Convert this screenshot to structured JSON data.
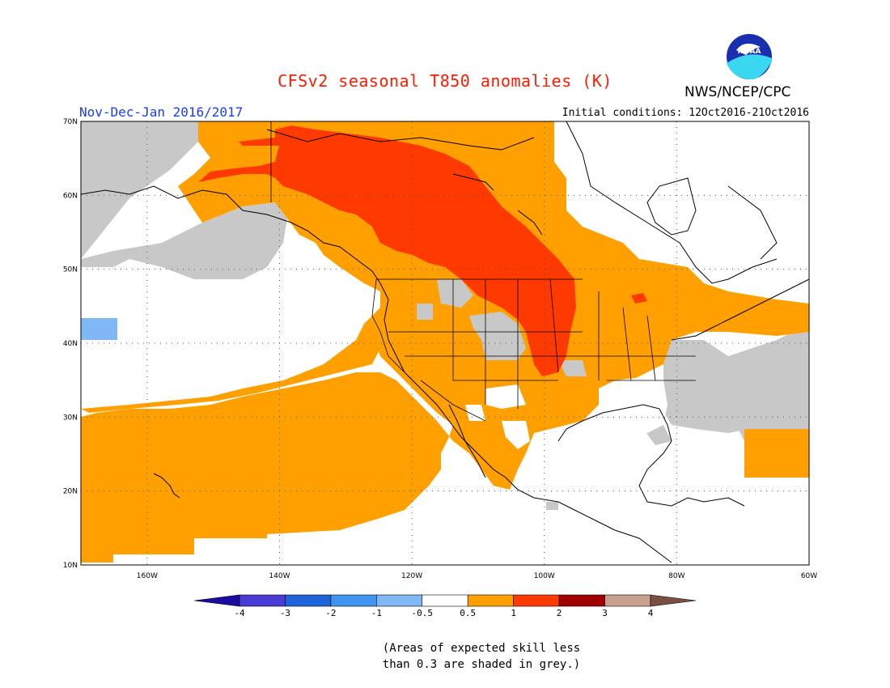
{
  "title": "CFSv2 seasonal T850 anomalies (K)",
  "organization": "NWS/NCEP/CPC",
  "logo_text": "NOAA",
  "period": "Nov-Dec-Jan 2016/2017",
  "initial_conditions": "Initial conditions: 12Oct2016-21Oct2016",
  "lat_labels": [
    "70N",
    "60N",
    "50N",
    "40N",
    "30N",
    "20N",
    "10N"
  ],
  "lon_labels": [
    "160W",
    "140W",
    "120W",
    "100W",
    "80W",
    "60W"
  ],
  "colorbar": {
    "labels": [
      "-4",
      "-3",
      "-2",
      "-1",
      "-0.5",
      "0.5",
      "1",
      "2",
      "3",
      "4"
    ],
    "colors": [
      "#1a0c9e",
      "#4b3ad6",
      "#1f63d8",
      "#3f93f0",
      "#7fb8f5",
      "#ffffff",
      "#ffa000",
      "#ff3a00",
      "#a00000",
      "#c7a08f",
      "#7a5045"
    ]
  },
  "legend_regions": {
    "skill_grey": "#c8c8c8",
    "warm_05_1": "#ffa000",
    "warm_1_2": "#ff3a00",
    "cool_05_1": "#7fb8f5"
  },
  "footnote_line1": "(Areas of expected skill less",
  "footnote_line2": "than 0.3 are shaded in grey.)"
}
